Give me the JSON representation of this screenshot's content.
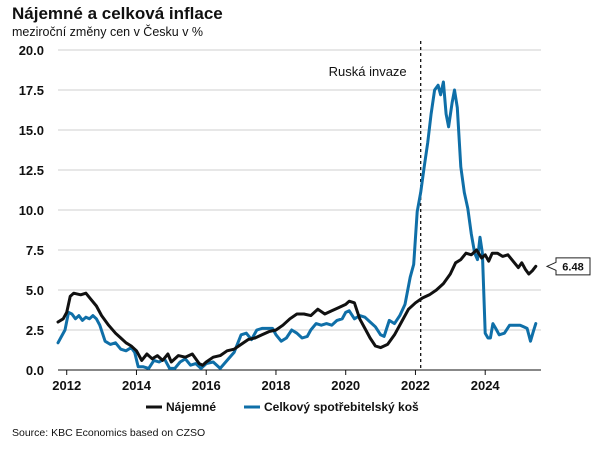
{
  "header": {
    "title": "Nájemné a celková inflace",
    "subtitle": "meziroční změny cen v Česku v  %"
  },
  "source": "Source: KBC Economics based on CZSO",
  "colors": {
    "rent": "#111111",
    "cpi": "#0f6fa8",
    "grid": "#cfcfcf"
  },
  "chart_data": {
    "type": "line",
    "title": "Nájemné a celková inflace",
    "subtitle": "meziroční změny cen v Česku v  %",
    "xlabel": "",
    "ylabel": "",
    "xlim": [
      2011.75,
      2025.6
    ],
    "ylim": [
      0,
      20
    ],
    "y_ticks": [
      "0.0",
      "2.5",
      "5.0",
      "7.5",
      "10.0",
      "12.5",
      "15.0",
      "17.5",
      "20.0"
    ],
    "x_ticks": [
      "2012",
      "2014",
      "2016",
      "2018",
      "2020",
      "2022",
      "2024"
    ],
    "grid": "horizontal",
    "annotations": [
      {
        "text": "Ruská invaze",
        "x": 2022.15
      }
    ],
    "callout": {
      "text": "6.48",
      "series": "Nájemné",
      "value": 6.48
    },
    "legend": [
      "Nájemné",
      "Celkový spotřebitelský koš"
    ],
    "series": [
      {
        "name": "Nájemné",
        "points": [
          [
            2011.75,
            3.0
          ],
          [
            2011.9,
            3.2
          ],
          [
            2012.0,
            3.6
          ],
          [
            2012.1,
            4.6
          ],
          [
            2012.2,
            4.8
          ],
          [
            2012.4,
            4.7
          ],
          [
            2012.55,
            4.8
          ],
          [
            2012.7,
            4.4
          ],
          [
            2012.85,
            4.0
          ],
          [
            2013.0,
            3.4
          ],
          [
            2013.2,
            2.8
          ],
          [
            2013.4,
            2.3
          ],
          [
            2013.55,
            2.0
          ],
          [
            2013.7,
            1.7
          ],
          [
            2013.85,
            1.5
          ],
          [
            2014.0,
            1.2
          ],
          [
            2014.15,
            0.6
          ],
          [
            2014.3,
            1.0
          ],
          [
            2014.45,
            0.7
          ],
          [
            2014.6,
            0.9
          ],
          [
            2014.75,
            0.6
          ],
          [
            2014.9,
            1.0
          ],
          [
            2015.0,
            0.5
          ],
          [
            2015.2,
            0.9
          ],
          [
            2015.4,
            0.8
          ],
          [
            2015.6,
            1.0
          ],
          [
            2015.8,
            0.4
          ],
          [
            2015.9,
            0.3
          ],
          [
            2016.0,
            0.5
          ],
          [
            2016.2,
            0.8
          ],
          [
            2016.4,
            0.9
          ],
          [
            2016.6,
            1.2
          ],
          [
            2016.8,
            1.3
          ],
          [
            2017.0,
            1.6
          ],
          [
            2017.2,
            1.9
          ],
          [
            2017.4,
            2.0
          ],
          [
            2017.6,
            2.2
          ],
          [
            2017.8,
            2.4
          ],
          [
            2018.0,
            2.5
          ],
          [
            2018.2,
            2.8
          ],
          [
            2018.4,
            3.2
          ],
          [
            2018.6,
            3.5
          ],
          [
            2018.8,
            3.5
          ],
          [
            2019.0,
            3.4
          ],
          [
            2019.2,
            3.8
          ],
          [
            2019.4,
            3.5
          ],
          [
            2019.6,
            3.7
          ],
          [
            2019.8,
            3.9
          ],
          [
            2020.0,
            4.1
          ],
          [
            2020.1,
            4.3
          ],
          [
            2020.25,
            4.2
          ],
          [
            2020.4,
            3.2
          ],
          [
            2020.55,
            2.6
          ],
          [
            2020.7,
            2.0
          ],
          [
            2020.85,
            1.5
          ],
          [
            2021.0,
            1.4
          ],
          [
            2021.2,
            1.6
          ],
          [
            2021.4,
            2.2
          ],
          [
            2021.6,
            3.0
          ],
          [
            2021.8,
            3.8
          ],
          [
            2022.0,
            4.2
          ],
          [
            2022.2,
            4.5
          ],
          [
            2022.4,
            4.7
          ],
          [
            2022.6,
            5.0
          ],
          [
            2022.8,
            5.4
          ],
          [
            2023.0,
            6.0
          ],
          [
            2023.15,
            6.7
          ],
          [
            2023.3,
            6.9
          ],
          [
            2023.45,
            7.3
          ],
          [
            2023.6,
            7.2
          ],
          [
            2023.75,
            7.5
          ],
          [
            2023.9,
            7.0
          ],
          [
            2024.0,
            7.2
          ],
          [
            2024.1,
            6.8
          ],
          [
            2024.2,
            7.3
          ],
          [
            2024.35,
            7.3
          ],
          [
            2024.5,
            7.1
          ],
          [
            2024.65,
            7.2
          ],
          [
            2024.8,
            6.8
          ],
          [
            2024.95,
            6.4
          ],
          [
            2025.05,
            6.7
          ],
          [
            2025.15,
            6.3
          ],
          [
            2025.25,
            6.0
          ],
          [
            2025.35,
            6.2
          ],
          [
            2025.45,
            6.48
          ]
        ]
      },
      {
        "name": "Celkový spotřebitelský koš",
        "points": [
          [
            2011.75,
            1.7
          ],
          [
            2011.85,
            2.1
          ],
          [
            2011.95,
            2.5
          ],
          [
            2012.05,
            3.6
          ],
          [
            2012.15,
            3.5
          ],
          [
            2012.25,
            3.2
          ],
          [
            2012.35,
            3.4
          ],
          [
            2012.45,
            3.1
          ],
          [
            2012.55,
            3.3
          ],
          [
            2012.65,
            3.2
          ],
          [
            2012.75,
            3.4
          ],
          [
            2012.85,
            3.2
          ],
          [
            2012.95,
            2.8
          ],
          [
            2013.1,
            1.8
          ],
          [
            2013.25,
            1.6
          ],
          [
            2013.4,
            1.7
          ],
          [
            2013.55,
            1.3
          ],
          [
            2013.7,
            1.2
          ],
          [
            2013.85,
            1.4
          ],
          [
            2013.95,
            1.1
          ],
          [
            2014.05,
            0.2
          ],
          [
            2014.2,
            0.2
          ],
          [
            2014.35,
            0.1
          ],
          [
            2014.5,
            0.6
          ],
          [
            2014.65,
            0.5
          ],
          [
            2014.8,
            0.7
          ],
          [
            2014.95,
            0.1
          ],
          [
            2015.1,
            0.1
          ],
          [
            2015.25,
            0.5
          ],
          [
            2015.4,
            0.7
          ],
          [
            2015.55,
            0.3
          ],
          [
            2015.7,
            0.4
          ],
          [
            2015.85,
            0.1
          ],
          [
            2016.0,
            0.4
          ],
          [
            2016.2,
            0.5
          ],
          [
            2016.4,
            0.1
          ],
          [
            2016.6,
            0.6
          ],
          [
            2016.8,
            1.1
          ],
          [
            2017.0,
            2.2
          ],
          [
            2017.15,
            2.3
          ],
          [
            2017.3,
            1.9
          ],
          [
            2017.45,
            2.5
          ],
          [
            2017.6,
            2.6
          ],
          [
            2017.75,
            2.6
          ],
          [
            2017.9,
            2.6
          ],
          [
            2018.0,
            2.2
          ],
          [
            2018.15,
            1.8
          ],
          [
            2018.3,
            2.0
          ],
          [
            2018.45,
            2.5
          ],
          [
            2018.6,
            2.3
          ],
          [
            2018.75,
            2.0
          ],
          [
            2018.9,
            2.1
          ],
          [
            2019.0,
            2.5
          ],
          [
            2019.15,
            2.9
          ],
          [
            2019.3,
            2.8
          ],
          [
            2019.45,
            2.9
          ],
          [
            2019.6,
            2.8
          ],
          [
            2019.75,
            3.1
          ],
          [
            2019.9,
            3.2
          ],
          [
            2020.0,
            3.6
          ],
          [
            2020.1,
            3.7
          ],
          [
            2020.25,
            3.2
          ],
          [
            2020.4,
            3.4
          ],
          [
            2020.55,
            3.3
          ],
          [
            2020.7,
            3.0
          ],
          [
            2020.85,
            2.7
          ],
          [
            2021.0,
            2.2
          ],
          [
            2021.1,
            2.1
          ],
          [
            2021.25,
            3.1
          ],
          [
            2021.4,
            2.9
          ],
          [
            2021.55,
            3.4
          ],
          [
            2021.7,
            4.1
          ],
          [
            2021.85,
            5.8
          ],
          [
            2021.95,
            6.6
          ],
          [
            2022.05,
            9.9
          ],
          [
            2022.15,
            11.1
          ],
          [
            2022.25,
            12.7
          ],
          [
            2022.35,
            14.2
          ],
          [
            2022.45,
            16.0
          ],
          [
            2022.55,
            17.5
          ],
          [
            2022.65,
            17.8
          ],
          [
            2022.72,
            17.2
          ],
          [
            2022.8,
            18.0
          ],
          [
            2022.88,
            16.0
          ],
          [
            2022.95,
            15.2
          ],
          [
            2023.05,
            16.7
          ],
          [
            2023.12,
            17.5
          ],
          [
            2023.2,
            16.4
          ],
          [
            2023.3,
            12.7
          ],
          [
            2023.4,
            11.1
          ],
          [
            2023.5,
            10.1
          ],
          [
            2023.6,
            8.5
          ],
          [
            2023.7,
            7.3
          ],
          [
            2023.78,
            6.9
          ],
          [
            2023.85,
            8.3
          ],
          [
            2023.92,
            7.3
          ],
          [
            2024.0,
            2.3
          ],
          [
            2024.08,
            2.0
          ],
          [
            2024.15,
            2.0
          ],
          [
            2024.22,
            2.9
          ],
          [
            2024.3,
            2.6
          ],
          [
            2024.4,
            2.2
          ],
          [
            2024.55,
            2.3
          ],
          [
            2024.7,
            2.8
          ],
          [
            2024.85,
            2.8
          ],
          [
            2025.0,
            2.8
          ],
          [
            2025.1,
            2.7
          ],
          [
            2025.2,
            2.6
          ],
          [
            2025.3,
            1.8
          ],
          [
            2025.38,
            2.4
          ],
          [
            2025.45,
            2.9
          ]
        ]
      }
    ]
  }
}
